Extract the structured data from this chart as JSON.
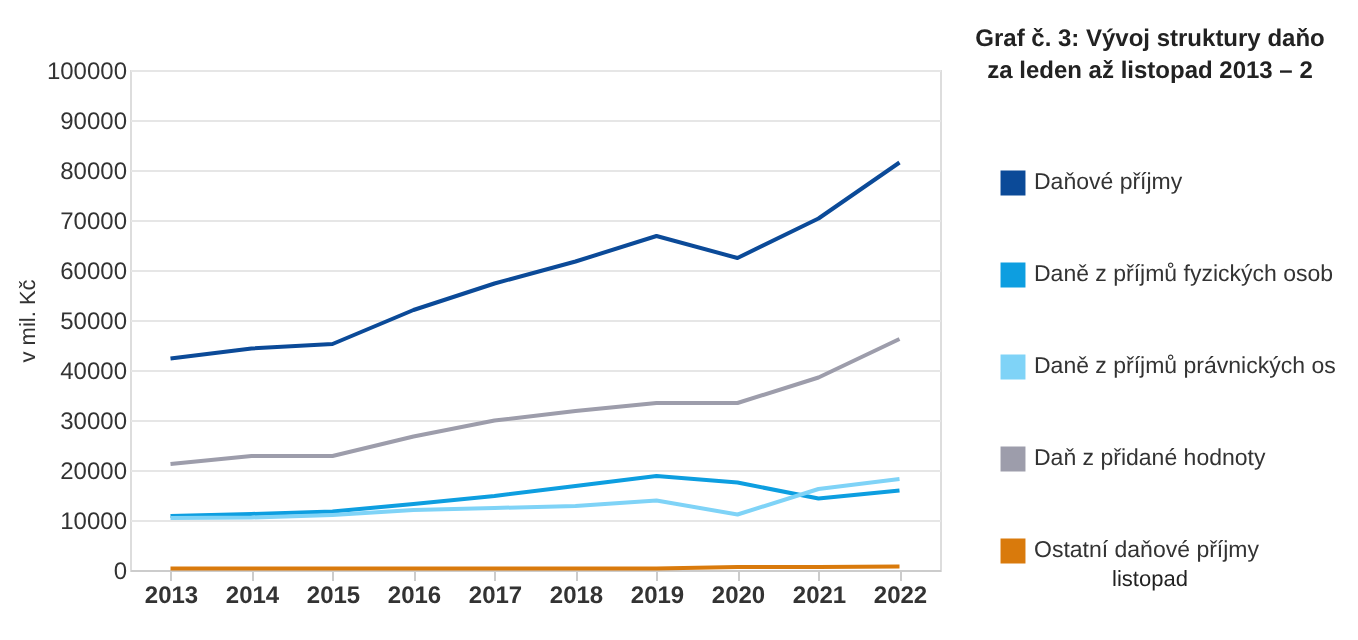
{
  "chart_data": {
    "type": "line",
    "title": "Graf č. 3: Vývoj struktury daňo",
    "subtitle": "za leden až listopad 2013 – 2",
    "ylabel": "v mil. Kč",
    "categories": [
      "2013",
      "2014",
      "2015",
      "2016",
      "2017",
      "2018",
      "2019",
      "2020",
      "2021",
      "2022"
    ],
    "series": [
      {
        "name": "Daňové příjmy",
        "color": "#0b4a98",
        "values": [
          42300,
          44300,
          45200,
          52000,
          57300,
          61700,
          66800,
          62400,
          70300,
          81500
        ]
      },
      {
        "name": "Daně z příjmů fyzických osob",
        "color": "#0d9ee0",
        "values": [
          10800,
          11200,
          11700,
          13200,
          14800,
          16800,
          18800,
          17500,
          14300,
          15900
        ]
      },
      {
        "name": "Daně z příjmů právnických os",
        "color": "#7fd3f7",
        "values": [
          10400,
          10500,
          11000,
          12000,
          12400,
          12800,
          13900,
          11100,
          16200,
          18200
        ]
      },
      {
        "name": "Daň z přidané hodnoty",
        "color": "#9d9dab",
        "values": [
          21200,
          22800,
          22800,
          26700,
          29900,
          31800,
          33400,
          33400,
          38500,
          46200
        ]
      },
      {
        "name": "Ostatní daňové příjmy",
        "color": "#d97a0c",
        "values": [
          300,
          300,
          300,
          300,
          300,
          300,
          300,
          600,
          600,
          700
        ]
      }
    ],
    "ylim": [
      0,
      100000
    ],
    "yticks": [
      0,
      10000,
      20000,
      30000,
      40000,
      50000,
      60000,
      70000,
      80000,
      90000,
      100000
    ],
    "grid": "y",
    "legend": "right",
    "marker": "none",
    "line_style": "solid",
    "annotations": [
      "listopad"
    ]
  }
}
